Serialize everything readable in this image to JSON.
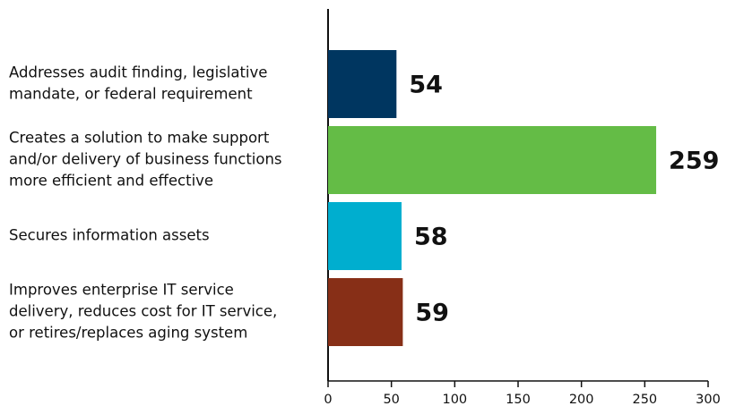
{
  "chart_data": {
    "type": "bar",
    "orientation": "horizontal",
    "categories": [
      [
        "Addresses audit finding, legislative",
        "mandate, or federal requirement"
      ],
      [
        "Creates a solution to make support",
        "and/or delivery of business functions",
        "more efficient and effective"
      ],
      [
        "Secures information assets"
      ],
      [
        "Improves enterprise IT service",
        "delivery, reduces cost for IT service,",
        "or retires/replaces aging system"
      ]
    ],
    "values": [
      54,
      259,
      58,
      59
    ],
    "colors": [
      "#003660",
      "#64bc46",
      "#00aecf",
      "#872f17"
    ],
    "xlim": [
      0,
      300
    ],
    "xticks": [
      0,
      50,
      100,
      150,
      200,
      250,
      300
    ]
  }
}
